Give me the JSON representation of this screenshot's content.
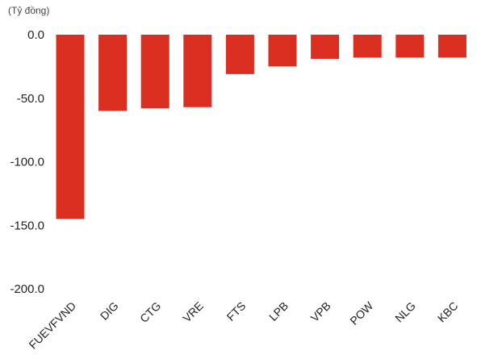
{
  "chart_data": {
    "type": "bar",
    "unit_label": "(Tỷ đồng)",
    "categories": [
      "FUEVFVND",
      "DIG",
      "CTG",
      "VRE",
      "FTS",
      "LPB",
      "VPB",
      "POW",
      "NLG",
      "KBC"
    ],
    "values": [
      -145,
      -60,
      -58,
      -57,
      -31,
      -25,
      -19,
      -18,
      -18,
      -18
    ],
    "yticks": [
      "0.0",
      "-50.0",
      "-100.0",
      "-150.0",
      "-200.0"
    ],
    "ylim": [
      -200,
      0
    ],
    "bar_color": "#d92e20",
    "grid": false,
    "legend": "none"
  }
}
